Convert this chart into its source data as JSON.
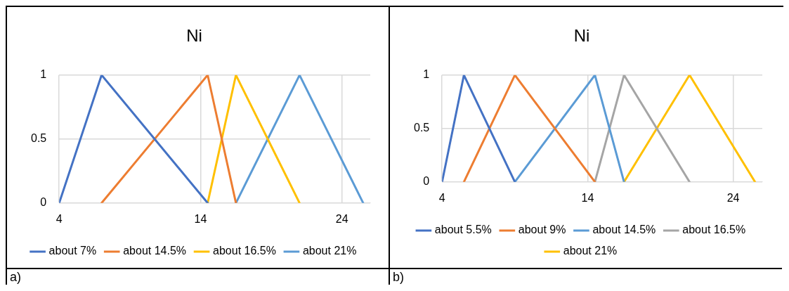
{
  "chart_data": [
    {
      "type": "line",
      "title": "Ni",
      "xlim": [
        4,
        26
      ],
      "xticks": [
        4,
        14,
        24
      ],
      "ylim": [
        0,
        1
      ],
      "yticks": [
        0,
        0.5,
        1
      ],
      "grid": true,
      "legend": "bottom",
      "marker": "none",
      "line_style": "solid",
      "annotations": [
        "a)"
      ],
      "series": [
        {
          "name": "about 7%",
          "color": "#4472c4",
          "x": [
            4,
            7,
            14.5
          ],
          "values": [
            0,
            1,
            0
          ]
        },
        {
          "name": "about 14.5%",
          "color": "#ed7d31",
          "x": [
            7,
            14.5,
            16.5
          ],
          "values": [
            0,
            1,
            0
          ]
        },
        {
          "name": "about 16.5%",
          "color": "#ffc000",
          "x": [
            14.5,
            16.5,
            21
          ],
          "values": [
            0,
            1,
            0
          ]
        },
        {
          "name": "about 21%",
          "color": "#5b9bd5",
          "x": [
            16.5,
            21,
            25.5
          ],
          "values": [
            0,
            1,
            0
          ]
        }
      ]
    },
    {
      "type": "line",
      "title": "Ni",
      "xlim": [
        4,
        26
      ],
      "xticks": [
        4,
        14,
        24
      ],
      "ylim": [
        0,
        1
      ],
      "yticks": [
        0,
        0.5,
        1
      ],
      "grid": true,
      "legend": "bottom",
      "marker": "none",
      "line_style": "solid",
      "annotations": [
        "b)"
      ],
      "series": [
        {
          "name": "about 5.5%",
          "color": "#4472c4",
          "x": [
            4,
            5.5,
            9
          ],
          "values": [
            0,
            1,
            0
          ]
        },
        {
          "name": "about 9%",
          "color": "#ed7d31",
          "x": [
            5.5,
            9,
            14.5
          ],
          "values": [
            0,
            1,
            0
          ]
        },
        {
          "name": "about 14.5%",
          "color": "#5b9bd5",
          "x": [
            9,
            14.5,
            16.5
          ],
          "values": [
            0,
            1,
            0
          ]
        },
        {
          "name": "about 16.5%",
          "color": "#a5a5a5",
          "x": [
            14.5,
            16.5,
            21
          ],
          "values": [
            0,
            1,
            0
          ]
        },
        {
          "name": "about 21%",
          "color": "#ffc000",
          "x": [
            16.5,
            21,
            25.5
          ],
          "values": [
            0,
            1,
            0
          ]
        }
      ]
    }
  ]
}
